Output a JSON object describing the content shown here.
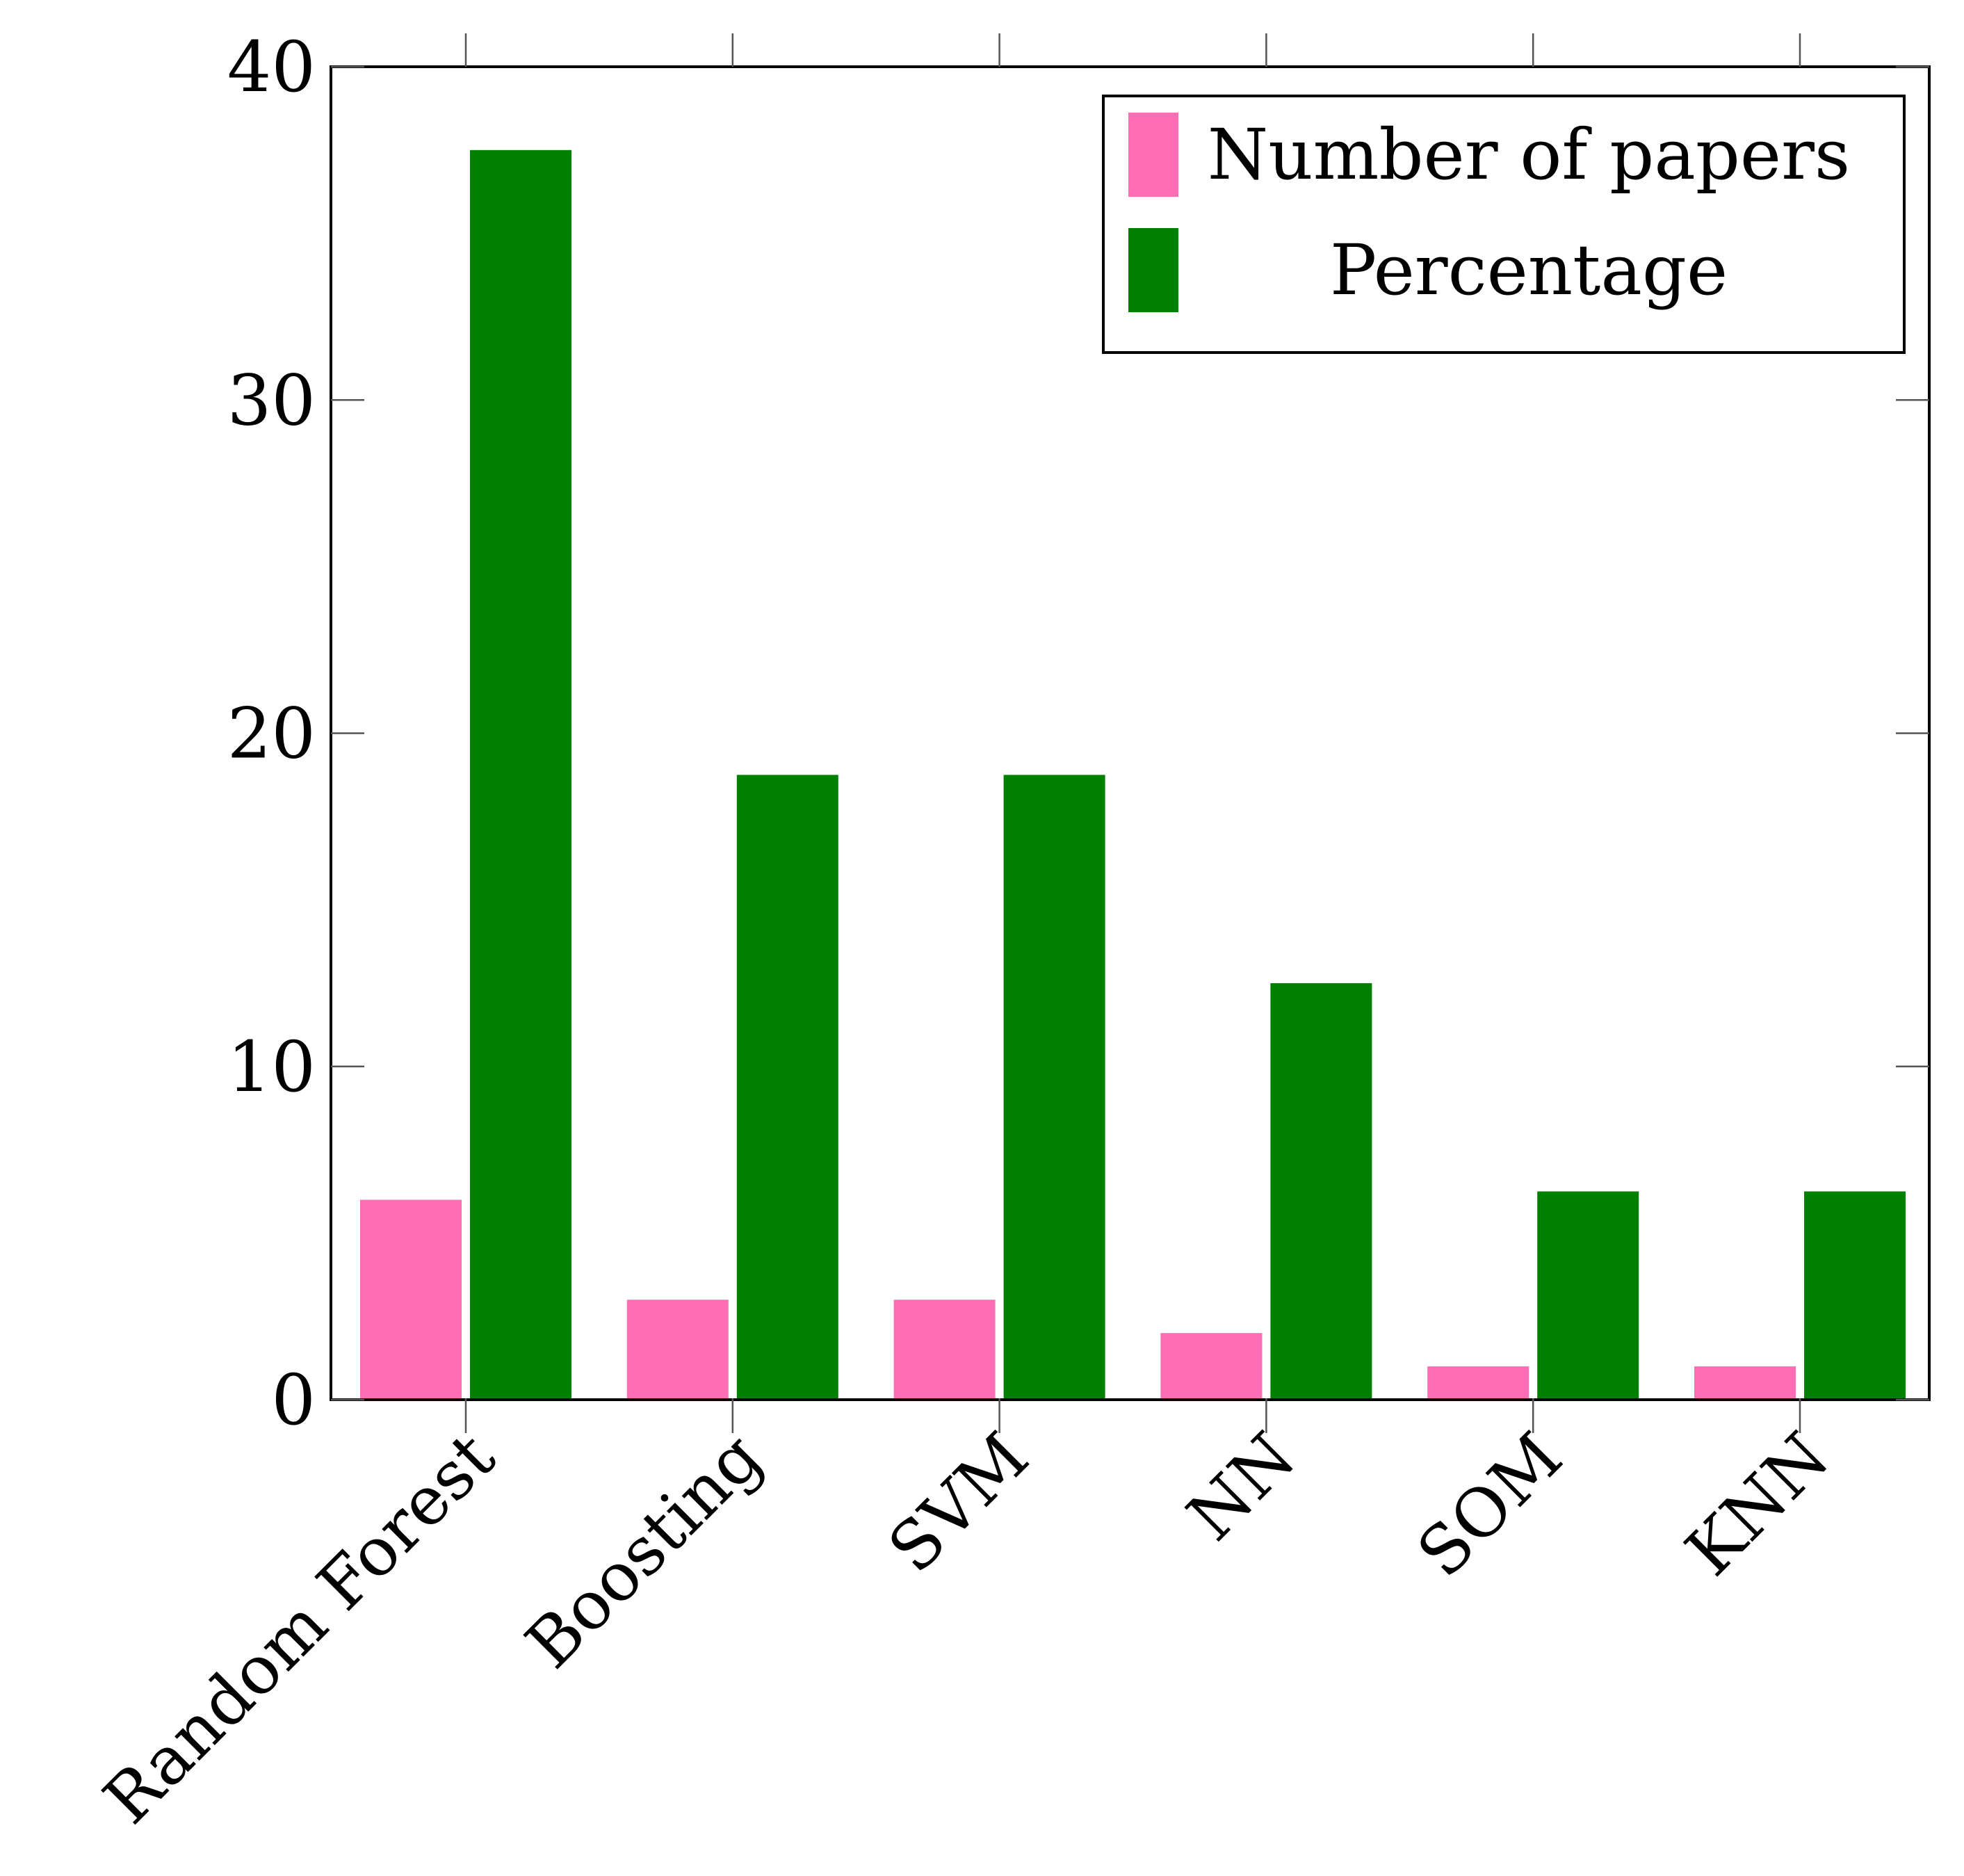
{
  "chart_data": {
    "type": "bar",
    "title": "",
    "xlabel": "",
    "ylabel": "",
    "categories": [
      "Random Forest",
      "Boosting",
      "SVM",
      "NN",
      "SOM",
      "KNN"
    ],
    "series": [
      {
        "name": "Number of papers",
        "color": "#ff6eb4",
        "values": [
          6,
          3,
          3,
          2,
          1,
          1
        ]
      },
      {
        "name": "Percentage",
        "color": "#008000",
        "values": [
          37.5,
          18.75,
          18.75,
          12.5,
          6.25,
          6.25
        ]
      }
    ],
    "ylim": [
      0,
      40
    ],
    "yticks": [
      0,
      10,
      20,
      30,
      40
    ],
    "ytick_labels": [
      "0",
      "10",
      "20",
      "30",
      "40"
    ],
    "grid": false,
    "legend_position": "top-right"
  }
}
